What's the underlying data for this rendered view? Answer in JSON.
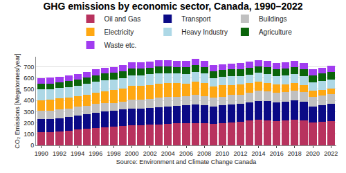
{
  "chart_data": {
    "type": "bar",
    "stacked": true,
    "title": "GHG emissions by economic sector, Canada, 1990–2022",
    "ylabel": "CO₂ Emissions [Megatonnes/year]",
    "xlabel": "Source: Environment and Climate Change Canada",
    "x": [
      1990,
      1991,
      1992,
      1993,
      1994,
      1995,
      1996,
      1997,
      1998,
      1999,
      2000,
      2001,
      2002,
      2003,
      2004,
      2005,
      2006,
      2007,
      2008,
      2009,
      2010,
      2011,
      2012,
      2013,
      2014,
      2015,
      2016,
      2017,
      2018,
      2019,
      2020,
      2021,
      2022
    ],
    "xlim": [
      1989.4,
      2022.6
    ],
    "xticks": [
      1990,
      1992,
      1994,
      1996,
      1998,
      2000,
      2002,
      2004,
      2006,
      2008,
      2010,
      2012,
      2014,
      2016,
      2018,
      2020,
      2022
    ],
    "ylim": [
      0,
      790
    ],
    "yticks": [
      0,
      100,
      200,
      300,
      400,
      500,
      600,
      700
    ],
    "grid": true,
    "legend": "top",
    "series": [
      {
        "name": "Oil and Gas",
        "color": "#b8325e",
        "values": [
          118,
          120,
          125,
          132,
          140,
          148,
          155,
          160,
          165,
          172,
          180,
          182,
          185,
          188,
          192,
          195,
          198,
          200,
          198,
          190,
          195,
          202,
          210,
          220,
          228,
          225,
          215,
          220,
          228,
          220,
          205,
          210,
          217
        ]
      },
      {
        "name": "Transport",
        "color": "#0b0a86",
        "values": [
          118,
          116,
          118,
          122,
          128,
          132,
          136,
          140,
          143,
          146,
          150,
          148,
          150,
          152,
          155,
          158,
          158,
          162,
          158,
          155,
          160,
          162,
          163,
          165,
          168,
          168,
          168,
          170,
          172,
          170,
          142,
          150,
          156
        ]
      },
      {
        "name": "Buildings",
        "color": "#c0c0c0",
        "values": [
          72,
          72,
          75,
          74,
          76,
          74,
          78,
          76,
          70,
          72,
          78,
          78,
          80,
          84,
          82,
          80,
          80,
          86,
          84,
          82,
          80,
          84,
          80,
          86,
          90,
          86,
          84,
          86,
          90,
          88,
          84,
          84,
          85
        ]
      },
      {
        "name": "Electricity",
        "color": "#ffa812",
        "values": [
          95,
          98,
          100,
          95,
          92,
          98,
          100,
          108,
          115,
          115,
          122,
          125,
          125,
          128,
          125,
          120,
          115,
          122,
          118,
          100,
          100,
          92,
          88,
          82,
          80,
          78,
          75,
          70,
          65,
          62,
          55,
          52,
          50
        ]
      },
      {
        "name": "Heavy Industry",
        "color": "#add8e6",
        "values": [
          97,
          95,
          93,
          94,
          95,
          96,
          96,
          96,
          94,
          95,
          96,
          93,
          94,
          90,
          88,
          87,
          86,
          86,
          83,
          74,
          78,
          78,
          78,
          78,
          80,
          78,
          78,
          78,
          80,
          78,
          74,
          77,
          78
        ]
      },
      {
        "name": "Agriculture",
        "color": "#0a640a",
        "values": [
          50,
          51,
          52,
          54,
          55,
          57,
          58,
          59,
          60,
          60,
          61,
          61,
          60,
          60,
          61,
          60,
          59,
          59,
          59,
          58,
          58,
          58,
          59,
          60,
          60,
          60,
          61,
          61,
          62,
          63,
          65,
          66,
          69
        ]
      },
      {
        "name": "Waste etc.",
        "color": "#a13cf0",
        "values": [
          50,
          50,
          51,
          51,
          52,
          52,
          53,
          53,
          53,
          54,
          54,
          54,
          54,
          55,
          55,
          55,
          55,
          55,
          55,
          54,
          54,
          54,
          55,
          55,
          55,
          55,
          55,
          55,
          56,
          56,
          54,
          55,
          55
        ]
      }
    ]
  }
}
